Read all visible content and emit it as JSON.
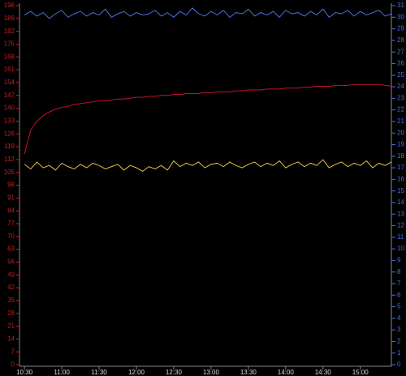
{
  "chart_data": {
    "type": "line",
    "x": [
      "10:30",
      "10:35",
      "10:40",
      "10:45",
      "10:50",
      "10:55",
      "11:00",
      "11:05",
      "11:10",
      "11:15",
      "11:20",
      "11:25",
      "11:30",
      "11:35",
      "11:40",
      "11:45",
      "11:50",
      "11:55",
      "12:00",
      "12:05",
      "12:10",
      "12:15",
      "12:20",
      "12:25",
      "12:30",
      "12:35",
      "12:40",
      "12:45",
      "12:50",
      "12:55",
      "13:00",
      "13:05",
      "13:10",
      "13:15",
      "13:20",
      "13:25",
      "13:30",
      "13:35",
      "13:40",
      "13:45",
      "13:50",
      "13:55",
      "14:00",
      "14:05",
      "14:10",
      "14:15",
      "14:20",
      "14:25",
      "14:30",
      "14:35",
      "14:40",
      "14:45",
      "14:50",
      "14:55",
      "15:00",
      "15:05",
      "15:10",
      "15:15",
      "15:20",
      "15:25"
    ],
    "series": [
      {
        "name": "blue",
        "color": "#4a6fe0",
        "axis": "y2",
        "values": [
          30.2,
          30.5,
          30.1,
          30.4,
          29.9,
          30.3,
          30.6,
          30.0,
          30.3,
          30.5,
          30.1,
          30.4,
          30.2,
          30.7,
          30.0,
          30.3,
          30.5,
          30.1,
          30.4,
          30.2,
          30.3,
          30.6,
          30.1,
          30.4,
          30.0,
          30.5,
          30.2,
          30.8,
          30.3,
          30.1,
          30.5,
          30.2,
          30.6,
          30.0,
          30.4,
          30.3,
          30.7,
          30.1,
          30.4,
          30.2,
          30.5,
          30.0,
          30.6,
          30.3,
          30.4,
          30.1,
          30.5,
          30.2,
          30.7,
          30.0,
          30.4,
          30.3,
          30.6,
          30.1,
          30.5,
          30.2,
          30.4,
          30.6,
          30.1,
          30.3
        ]
      },
      {
        "name": "red",
        "color": "#c8102e",
        "values": [
          115,
          128,
          133,
          136,
          138,
          139.5,
          140.5,
          141,
          142,
          142.5,
          143,
          143.5,
          144,
          144,
          144.5,
          145,
          145,
          145.5,
          146,
          146,
          146.5,
          146.5,
          147,
          147,
          147.5,
          147.5,
          148,
          148,
          148,
          148.5,
          148.5,
          149,
          149,
          149,
          149.5,
          149.5,
          150,
          150,
          150,
          150.5,
          150.5,
          150.5,
          151,
          151,
          151,
          151.5,
          151.5,
          152,
          152,
          152,
          152.5,
          152.5,
          152.5,
          153,
          153,
          153,
          153,
          153,
          152.5,
          152
        ]
      },
      {
        "name": "yellow",
        "color": "#e8c040",
        "axis": "y2",
        "values": [
          17.3,
          16.9,
          17.5,
          17.0,
          17.2,
          16.8,
          17.4,
          17.1,
          16.9,
          17.3,
          17.0,
          17.4,
          17.2,
          16.9,
          17.1,
          17.3,
          16.8,
          17.2,
          17.0,
          16.7,
          17.1,
          16.9,
          17.2,
          16.8,
          17.6,
          17.1,
          17.4,
          17.2,
          17.5,
          17.0,
          17.3,
          17.4,
          17.1,
          17.5,
          17.2,
          17.0,
          17.3,
          17.5,
          17.1,
          17.4,
          17.2,
          17.6,
          17.0,
          17.3,
          17.5,
          17.1,
          17.4,
          17.2,
          17.7,
          17.0,
          17.3,
          17.5,
          17.1,
          17.4,
          17.2,
          17.6,
          17.0,
          17.4,
          17.2,
          17.5
        ]
      }
    ],
    "xlim": [
      "10:26",
      "15:25"
    ],
    "xticks": [
      "10:30",
      "11:00",
      "11:30",
      "12:00",
      "12:30",
      "13:00",
      "13:30",
      "14:00",
      "14:30",
      "15:00"
    ],
    "ylim": [
      0,
      196
    ],
    "yticks": [
      0,
      7,
      14,
      21,
      28,
      35,
      42,
      49,
      56,
      63,
      70,
      77,
      84,
      91,
      98,
      105,
      112,
      119,
      126,
      133,
      140,
      147,
      154,
      161,
      168,
      175,
      182,
      189,
      196
    ],
    "y2lim": [
      0,
      31
    ],
    "y2ticks": [
      0,
      1,
      2,
      3,
      4,
      5,
      6,
      7,
      8,
      9,
      10,
      11,
      12,
      13,
      14,
      15,
      16,
      17,
      18,
      19,
      20,
      21,
      22,
      23,
      24,
      25,
      26,
      27,
      28,
      29,
      30,
      31
    ],
    "ytick_color": "#c81e1e",
    "y2tick_color": "#4a6fe0",
    "xtick_color": "#dddddd"
  }
}
